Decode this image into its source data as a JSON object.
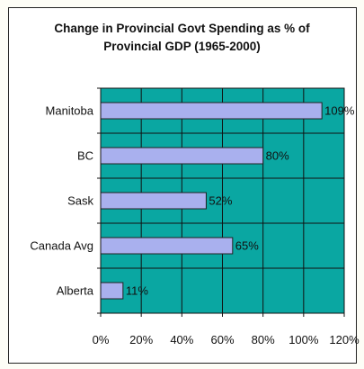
{
  "chart_data": {
    "type": "bar",
    "orientation": "horizontal",
    "title_lines": [
      "Change in Provincial Govt Spending as % of",
      "Provincial GDP (1965-2000)"
    ],
    "categories": [
      "Manitoba",
      "BC",
      "Sask",
      "Canada Avg",
      "Alberta"
    ],
    "values": [
      109,
      80,
      52,
      65,
      11
    ],
    "data_labels": [
      "109%",
      "80%",
      "52%",
      "65%",
      "11%"
    ],
    "xlim": [
      0,
      120
    ],
    "x_ticks": [
      0,
      20,
      40,
      60,
      80,
      100,
      120
    ],
    "x_tick_labels": [
      "0%",
      "20%",
      "40%",
      "60%",
      "80%",
      "100%",
      "120%"
    ],
    "xlabel": "",
    "ylabel": "",
    "grid": true,
    "legend": "none",
    "colors": {
      "plot_background": "#0aa7a2",
      "bar_fill": "#a9b0ee",
      "bar_stroke": "#222222",
      "grid": "#111111"
    }
  }
}
